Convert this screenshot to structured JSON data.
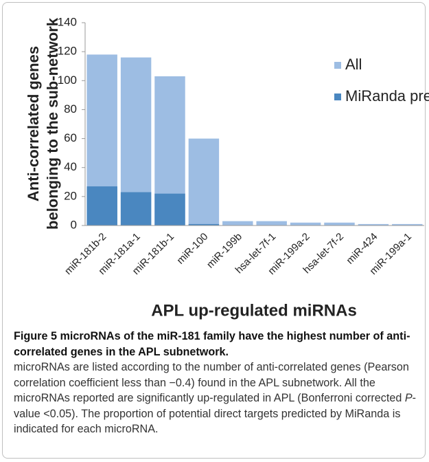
{
  "chart_data": {
    "type": "bar",
    "xlabel": "APL up-regulated miRNAs",
    "ylabel": [
      "Anti-correlated genes",
      "belonging to the sub-network"
    ],
    "categories": [
      "miR-181b-2",
      "miR-181a-1",
      "miR-181b-1",
      "miR-100",
      "miR-199b",
      "hsa-let-7f-1",
      "miR-199a-2",
      "hsa-let-7f-2",
      "miR-424",
      "miR-199a-1"
    ],
    "series": [
      {
        "name": "All",
        "color": "#9dbde3",
        "values": [
          118,
          116,
          103,
          60,
          3,
          3,
          2,
          2,
          1,
          1
        ]
      },
      {
        "name": "MiRanda predicted",
        "color": "#4a87c0",
        "values": [
          27,
          23,
          22,
          1,
          0,
          0,
          0,
          0,
          0,
          0
        ]
      }
    ],
    "ylim": [
      0,
      140
    ],
    "yticks": [
      0,
      20,
      40,
      60,
      80,
      100,
      120,
      140
    ],
    "grid": false,
    "legend": "upper right"
  },
  "caption": {
    "title": "Figure 5 microRNAs of the miR-181 family have the highest number of anti-correlated genes in the APL subnetwork.",
    "body": [
      "microRNAs are listed according to the number of anti-correlated genes (Pearson correlation coefficient less than −0.4) found in the APL subnetwork. All the microRNAs reported are significantly up-regulated in APL (Bonferroni corrected ",
      "P",
      "-value <0.05). The proportion of potential direct targets predicted by MiRanda is indicated for each microRNA."
    ]
  }
}
